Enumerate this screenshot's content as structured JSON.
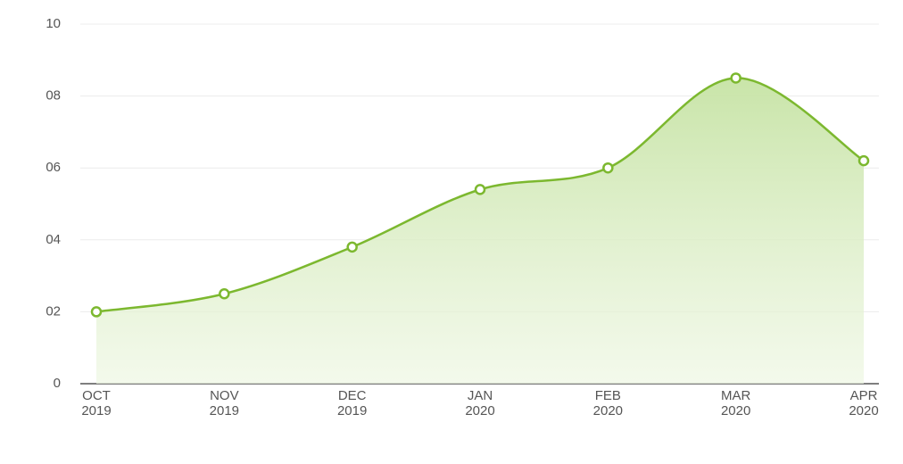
{
  "chart_data": {
    "type": "area",
    "categories": [
      "OCT 2019",
      "NOV 2019",
      "DEC 2019",
      "JAN 2020",
      "FEB 2020",
      "MAR 2020",
      "APR 2020"
    ],
    "values": [
      2.0,
      2.5,
      3.8,
      5.4,
      6.0,
      8.5,
      6.2
    ],
    "color": "#7cb82f",
    "ylim": [
      0,
      10
    ],
    "yticks": [
      0,
      {
        "value": 2,
        "label": "02"
      },
      {
        "value": 4,
        "label": "04"
      },
      {
        "value": 6,
        "label": "06"
      },
      {
        "value": 8,
        "label": "08"
      },
      10
    ],
    "grid": true
  }
}
